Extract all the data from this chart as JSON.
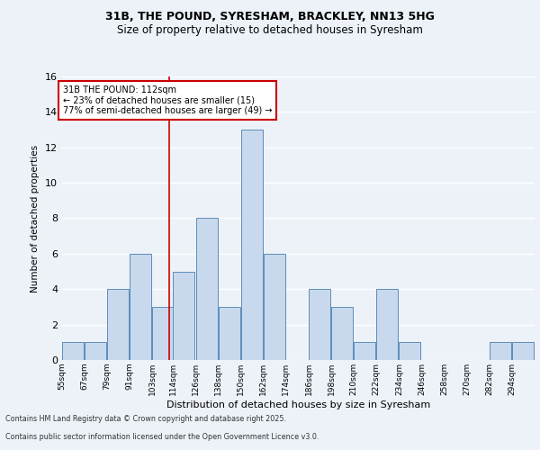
{
  "title_line1": "31B, THE POUND, SYRESHAM, BRACKLEY, NN13 5HG",
  "title_line2": "Size of property relative to detached houses in Syresham",
  "xlabel": "Distribution of detached houses by size in Syresham",
  "ylabel": "Number of detached properties",
  "bin_labels": [
    "55sqm",
    "67sqm",
    "79sqm",
    "91sqm",
    "103sqm",
    "114sqm",
    "126sqm",
    "138sqm",
    "150sqm",
    "162sqm",
    "174sqm",
    "186sqm",
    "198sqm",
    "210sqm",
    "222sqm",
    "234sqm",
    "246sqm",
    "258sqm",
    "270sqm",
    "282sqm",
    "294sqm"
  ],
  "bin_edges": [
    55,
    67,
    79,
    91,
    103,
    114,
    126,
    138,
    150,
    162,
    174,
    186,
    198,
    210,
    222,
    234,
    246,
    258,
    270,
    282,
    294
  ],
  "counts": [
    1,
    1,
    4,
    6,
    3,
    5,
    8,
    3,
    13,
    6,
    0,
    4,
    3,
    1,
    4,
    1,
    0,
    0,
    0,
    1,
    1
  ],
  "bar_color": "#c9d9ed",
  "bar_edge_color": "#5b8db8",
  "property_size": 112,
  "vline_color": "#cc0000",
  "annotation_text": "31B THE POUND: 112sqm\n← 23% of detached houses are smaller (15)\n77% of semi-detached houses are larger (49) →",
  "annotation_box_color": "#ffffff",
  "annotation_box_edge_color": "#cc0000",
  "footnote_line1": "Contains HM Land Registry data © Crown copyright and database right 2025.",
  "footnote_line2": "Contains public sector information licensed under the Open Government Licence v3.0.",
  "background_color": "#edf2f9",
  "grid_color": "#ffffff",
  "ylim": [
    0,
    16
  ],
  "yticks": [
    0,
    2,
    4,
    6,
    8,
    10,
    12,
    14,
    16
  ]
}
